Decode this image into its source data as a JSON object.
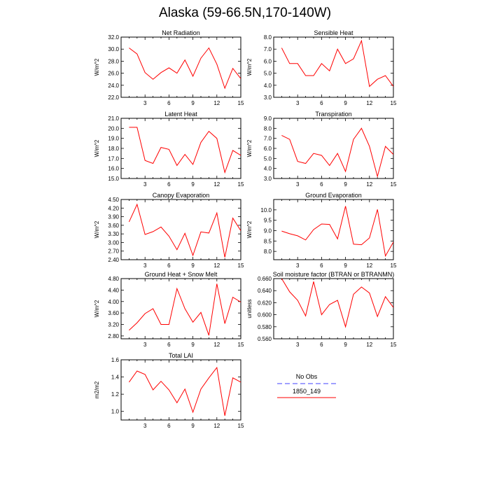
{
  "page": {
    "title": "Alaska (59-66.5N,170-140W)"
  },
  "legend": {
    "entries": [
      {
        "label": "No Obs",
        "color": "#8080ff",
        "style": "dashed"
      },
      {
        "label": "1850_149",
        "color": "#ff0000",
        "style": "solid"
      }
    ]
  },
  "chart_data": [
    {
      "type": "line",
      "title": "Net Radiation",
      "ylabel": "W/m^2",
      "xlim": [
        0,
        15
      ],
      "ylim": [
        22.0,
        32.0
      ],
      "xticks": [
        3,
        6,
        9,
        12,
        15
      ],
      "yticks": [
        22.0,
        24.0,
        26.0,
        28.0,
        30.0,
        32.0
      ],
      "ytick_labels": [
        "22.0",
        "24.0",
        "26.0",
        "28.0",
        "30.0",
        "32.0"
      ],
      "series": [
        {
          "name": "1850_149",
          "color": "#ff0000",
          "x": [
            1,
            2,
            3,
            4,
            5,
            6,
            7,
            8,
            9,
            10,
            11,
            12,
            13,
            14,
            15
          ],
          "y": [
            30.2,
            29.2,
            26.1,
            25.0,
            26.1,
            26.9,
            26.0,
            28.2,
            25.5,
            28.5,
            30.2,
            27.5,
            23.5,
            26.8,
            25.1
          ]
        }
      ]
    },
    {
      "type": "line",
      "title": "Sensible Heat",
      "ylabel": "W/m^2",
      "xlim": [
        0,
        15
      ],
      "ylim": [
        3.0,
        8.0
      ],
      "xticks": [
        3,
        6,
        9,
        12,
        15
      ],
      "yticks": [
        3.0,
        4.0,
        5.0,
        6.0,
        7.0,
        8.0
      ],
      "ytick_labels": [
        "3.0",
        "4.0",
        "5.0",
        "6.0",
        "7.0",
        "8.0"
      ],
      "series": [
        {
          "name": "1850_149",
          "color": "#ff0000",
          "x": [
            1,
            2,
            3,
            4,
            5,
            6,
            7,
            8,
            9,
            10,
            11,
            12,
            13,
            14,
            15
          ],
          "y": [
            7.1,
            5.8,
            5.8,
            4.8,
            4.8,
            5.8,
            5.2,
            7.0,
            5.8,
            6.2,
            7.7,
            3.9,
            4.5,
            4.8,
            3.9
          ]
        }
      ]
    },
    {
      "type": "line",
      "title": "Latent Heat",
      "ylabel": "W/m^2",
      "xlim": [
        0,
        15
      ],
      "ylim": [
        15.0,
        21.0
      ],
      "xticks": [
        3,
        6,
        9,
        12,
        15
      ],
      "yticks": [
        15.0,
        16.0,
        17.0,
        18.0,
        19.0,
        20.0,
        21.0
      ],
      "ytick_labels": [
        "15.0",
        "16.0",
        "17.0",
        "18.0",
        "19.0",
        "20.0",
        "21.0"
      ],
      "series": [
        {
          "name": "1850_149",
          "color": "#ff0000",
          "x": [
            1,
            2,
            3,
            4,
            5,
            6,
            7,
            8,
            9,
            10,
            11,
            12,
            13,
            14,
            15
          ],
          "y": [
            20.1,
            20.1,
            16.8,
            16.5,
            18.1,
            17.9,
            16.3,
            17.4,
            16.4,
            18.6,
            19.7,
            19.0,
            15.6,
            17.8,
            17.3
          ]
        }
      ]
    },
    {
      "type": "line",
      "title": "Transpiration",
      "ylabel": "W/m^2",
      "xlim": [
        0,
        15
      ],
      "ylim": [
        3.0,
        9.0
      ],
      "xticks": [
        3,
        6,
        9,
        12,
        15
      ],
      "yticks": [
        3.0,
        4.0,
        5.0,
        6.0,
        7.0,
        8.0,
        9.0
      ],
      "ytick_labels": [
        "3.0",
        "4.0",
        "5.0",
        "6.0",
        "7.0",
        "8.0",
        "9.0"
      ],
      "series": [
        {
          "name": "1850_149",
          "color": "#ff0000",
          "x": [
            1,
            2,
            3,
            4,
            5,
            6,
            7,
            8,
            9,
            10,
            11,
            12,
            13,
            14,
            15
          ],
          "y": [
            7.3,
            6.9,
            4.7,
            4.5,
            5.5,
            5.3,
            4.3,
            5.5,
            3.7,
            6.9,
            8.0,
            6.2,
            3.2,
            6.2,
            5.4
          ]
        }
      ]
    },
    {
      "type": "line",
      "title": "Canopy Evaporation",
      "ylabel": "W/m^2",
      "xlim": [
        0,
        15
      ],
      "ylim": [
        2.4,
        4.5
      ],
      "xticks": [
        3,
        6,
        9,
        12,
        15
      ],
      "yticks": [
        2.4,
        2.7,
        3.0,
        3.3,
        3.6,
        3.9,
        4.2,
        4.5
      ],
      "ytick_labels": [
        "2.40",
        "2.70",
        "3.00",
        "3.30",
        "3.60",
        "3.90",
        "4.20",
        "4.50"
      ],
      "series": [
        {
          "name": "1850_149",
          "color": "#ff0000",
          "x": [
            1,
            2,
            3,
            4,
            5,
            6,
            7,
            8,
            9,
            10,
            11,
            12,
            13,
            14,
            15
          ],
          "y": [
            3.72,
            4.33,
            3.28,
            3.38,
            3.54,
            3.22,
            2.75,
            3.32,
            2.55,
            3.37,
            3.33,
            4.03,
            2.48,
            3.85,
            3.41
          ]
        }
      ]
    },
    {
      "type": "line",
      "title": "Ground Evaporation",
      "ylabel": "W/m^2",
      "xlim": [
        0,
        15
      ],
      "ylim": [
        7.6,
        10.5
      ],
      "xticks": [
        3,
        6,
        9,
        12,
        15
      ],
      "yticks": [
        8.0,
        8.5,
        9.0,
        9.5,
        10.0
      ],
      "ytick_labels": [
        "8.0",
        "8.5",
        "9.0",
        "9.5",
        "10.0"
      ],
      "series": [
        {
          "name": "1850_149",
          "color": "#ff0000",
          "x": [
            1,
            2,
            3,
            4,
            5,
            6,
            7,
            8,
            9,
            10,
            11,
            12,
            13,
            14,
            15
          ],
          "y": [
            8.98,
            8.85,
            8.75,
            8.55,
            9.05,
            9.32,
            9.3,
            8.6,
            10.18,
            8.35,
            8.32,
            8.65,
            10.02,
            7.78,
            8.45
          ]
        }
      ]
    },
    {
      "type": "line",
      "title": "Ground Heat + Snow Melt",
      "ylabel": "W/m^2",
      "xlim": [
        0,
        15
      ],
      "ylim": [
        2.7,
        4.8
      ],
      "xticks": [
        3,
        6,
        9,
        12,
        15
      ],
      "yticks": [
        2.8,
        3.2,
        3.6,
        4.0,
        4.4,
        4.8
      ],
      "ytick_labels": [
        "2.80",
        "3.20",
        "3.60",
        "4.00",
        "4.40",
        "4.80"
      ],
      "series": [
        {
          "name": "1850_149",
          "color": "#ff0000",
          "x": [
            1,
            2,
            3,
            4,
            5,
            6,
            7,
            8,
            9,
            10,
            11,
            12,
            13,
            14,
            15
          ],
          "y": [
            3.0,
            3.26,
            3.58,
            3.75,
            3.2,
            3.2,
            4.45,
            3.75,
            3.28,
            3.62,
            2.82,
            4.62,
            3.23,
            4.15,
            3.98
          ]
        }
      ]
    },
    {
      "type": "line",
      "title": "Soil moisture factor (BTRAN or BTRANMN)",
      "ylabel": "unitless",
      "xlim": [
        0,
        15
      ],
      "ylim": [
        0.56,
        0.66
      ],
      "xticks": [
        3,
        6,
        9,
        12,
        15
      ],
      "yticks": [
        0.56,
        0.58,
        0.6,
        0.62,
        0.64,
        0.66
      ],
      "ytick_labels": [
        "0.560",
        "0.580",
        "0.600",
        "0.620",
        "0.640",
        "0.660"
      ],
      "series": [
        {
          "name": "1850_149",
          "color": "#ff0000",
          "x": [
            1,
            2,
            3,
            4,
            5,
            6,
            7,
            8,
            9,
            10,
            11,
            12,
            13,
            14,
            15
          ],
          "y": [
            0.66,
            0.638,
            0.624,
            0.598,
            0.655,
            0.6,
            0.617,
            0.624,
            0.58,
            0.634,
            0.646,
            0.636,
            0.597,
            0.63,
            0.612
          ]
        }
      ]
    },
    {
      "type": "line",
      "title": "Total LAI",
      "ylabel": "m2/m2",
      "xlim": [
        0,
        15
      ],
      "ylim": [
        0.9,
        1.6
      ],
      "xticks": [
        3,
        6,
        9,
        12,
        15
      ],
      "yticks": [
        1.0,
        1.2,
        1.4,
        1.6
      ],
      "ytick_labels": [
        "1.0",
        "1.2",
        "1.4",
        "1.6"
      ],
      "series": [
        {
          "name": "1850_149",
          "color": "#ff0000",
          "x": [
            1,
            2,
            3,
            4,
            5,
            6,
            7,
            8,
            9,
            10,
            11,
            12,
            13,
            14,
            15
          ],
          "y": [
            1.34,
            1.47,
            1.43,
            1.25,
            1.35,
            1.25,
            1.1,
            1.26,
            0.99,
            1.26,
            1.39,
            1.51,
            0.95,
            1.39,
            1.34
          ]
        }
      ]
    }
  ]
}
